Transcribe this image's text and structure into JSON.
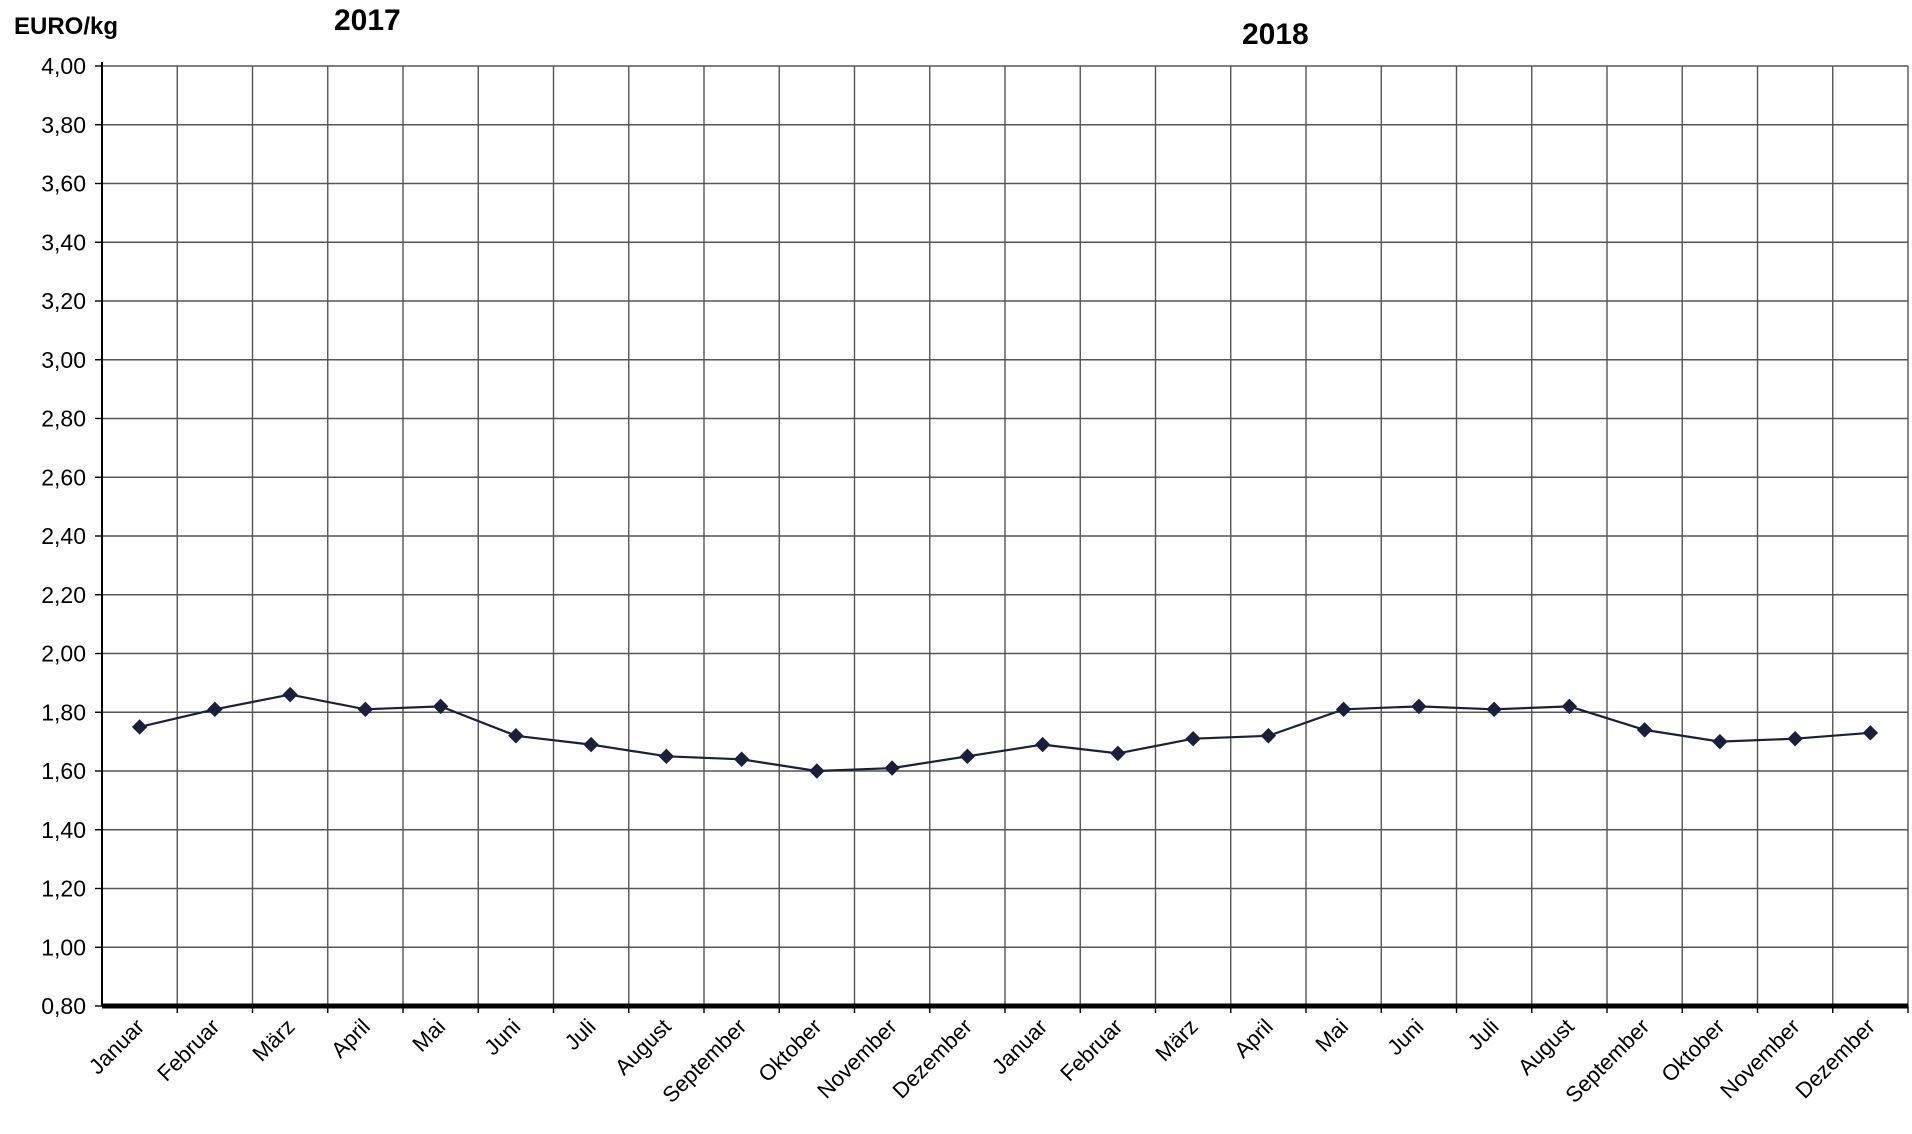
{
  "chart_data": {
    "type": "line",
    "ylabel": "EURO/kg",
    "year_labels": [
      "2017",
      "2018"
    ],
    "categories": [
      "Januar",
      "Februar",
      "März",
      "April",
      "Mai",
      "Juni",
      "Juli",
      "August",
      "September",
      "Oktober",
      "November",
      "Dezember",
      "Januar",
      "Februar",
      "März",
      "April",
      "Mai",
      "Juni",
      "Juli",
      "August",
      "September",
      "Oktober",
      "November",
      "Dezember"
    ],
    "series": [
      {
        "values": [
          1.75,
          1.81,
          1.86,
          1.81,
          1.82,
          1.72,
          1.69,
          1.65,
          1.64,
          1.6,
          1.61,
          1.65,
          1.69,
          1.66,
          1.71,
          1.72,
          1.81,
          1.82,
          1.81,
          1.82,
          1.74,
          1.7,
          1.71,
          1.73
        ],
        "color": "#1a1f3a"
      }
    ],
    "ylim": [
      0.8,
      4.0
    ],
    "ytick_step": 0.2,
    "y_tick_labels": [
      "0,80",
      "1,00",
      "1,20",
      "1,40",
      "1,60",
      "1,80",
      "2,00",
      "2,20",
      "2,40",
      "2,60",
      "2,80",
      "3,00",
      "3,20",
      "3,40",
      "3,60",
      "3,80",
      "4,00"
    ],
    "grid": true,
    "legend": "none",
    "marker": "diamond"
  }
}
